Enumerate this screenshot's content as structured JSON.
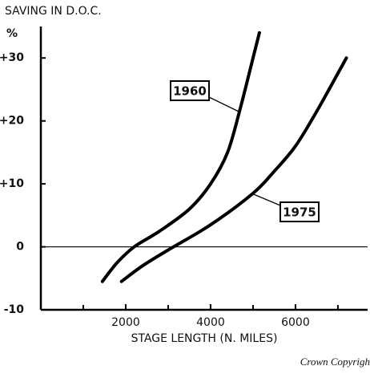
{
  "chart_data": {
    "type": "line",
    "title": "SAVING IN D.O.C.",
    "y_label": "%",
    "x_label": "STAGE LENGTH (N. MILES)",
    "footer": "Crown Copyrigh",
    "xlim": [
      0,
      7700
    ],
    "xticks": [
      2000,
      4000,
      6000
    ],
    "x_minor_ticks": [
      1000,
      3000,
      5000,
      7000
    ],
    "ylim": [
      -10,
      35
    ],
    "yticks": [
      {
        "value": 30,
        "label": "+30"
      },
      {
        "value": 20,
        "label": "+20"
      },
      {
        "value": 10,
        "label": "+10"
      },
      0,
      -10
    ],
    "zero_line": true,
    "series": [
      {
        "name": "1960",
        "color": "#000000",
        "x": [
          1450,
          1800,
          2200,
          2800,
          3500,
          4000,
          4400,
          4700,
          5000,
          5150
        ],
        "values": [
          -5.5,
          -2.5,
          0,
          2.5,
          6,
          10,
          15,
          22,
          30,
          34
        ]
      },
      {
        "name": "1975",
        "color": "#000000",
        "x": [
          1900,
          2400,
          3000,
          4000,
          5000,
          5500,
          6000,
          6500,
          7200
        ],
        "values": [
          -5.5,
          -3,
          -0.5,
          3.5,
          8.5,
          12,
          16,
          21.5,
          30
        ]
      }
    ]
  }
}
